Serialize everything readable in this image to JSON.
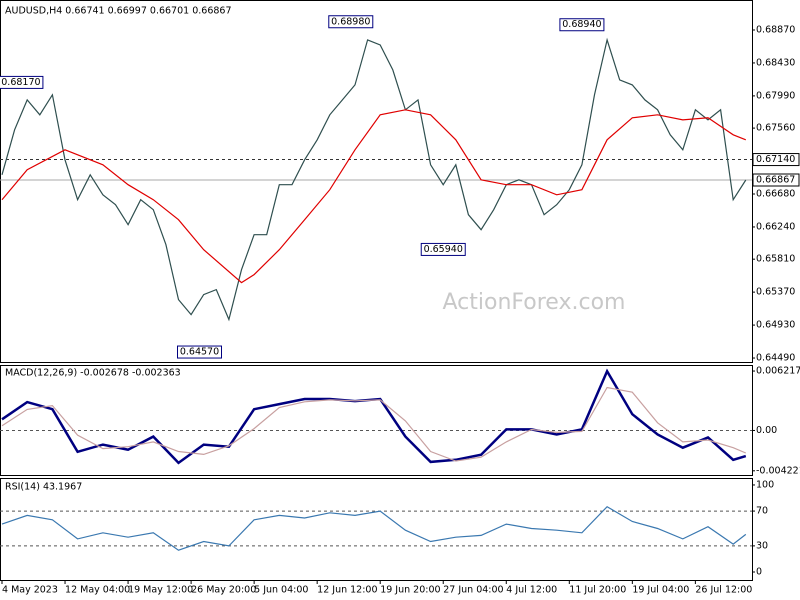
{
  "chart_data": [
    {
      "type": "line",
      "title": "AUDUSD,H4 0.66741 0.66997 0.66701 0.66867",
      "watermark": "ActionForex.com",
      "xlim": [
        0,
        356
      ],
      "ylim": [
        0.64437,
        0.69217
      ],
      "yticks": [
        {
          "value": 0.6887,
          "label": "0.68870"
        },
        {
          "value": 0.6843,
          "label": "0.68430"
        },
        {
          "value": 0.6799,
          "label": "0.67990"
        },
        {
          "value": 0.6756,
          "label": "0.67560"
        },
        {
          "value": 0.6668,
          "label": "0.66680"
        },
        {
          "value": 0.6624,
          "label": "0.66240"
        },
        {
          "value": 0.6581,
          "label": "0.65810"
        },
        {
          "value": 0.6537,
          "label": "0.65370"
        },
        {
          "value": 0.6493,
          "label": "0.64930"
        },
        {
          "value": 0.6449,
          "label": "0.64490"
        }
      ],
      "series": [
        {
          "name": "AUDUSD",
          "color": "#2f4f4f",
          "x": [
            0,
            6,
            12,
            18,
            24,
            30,
            36,
            42,
            48,
            54,
            60,
            66,
            72,
            78,
            84,
            90,
            96,
            102,
            108,
            114,
            120,
            126,
            132,
            138,
            144,
            150,
            156,
            162,
            168,
            174,
            180,
            186,
            192,
            198,
            204,
            210,
            216,
            222,
            228,
            234,
            240,
            246,
            252,
            258,
            264,
            270,
            276,
            282,
            288,
            294,
            300,
            306,
            312,
            318,
            324,
            330,
            336,
            342,
            348,
            354
          ],
          "values": [
            0.66937,
            0.67537,
            0.67937,
            0.67737,
            0.68004,
            0.67137,
            0.66604,
            0.66937,
            0.6667,
            0.66537,
            0.6627,
            0.66604,
            0.6647,
            0.66004,
            0.6527,
            0.6507,
            0.65337,
            0.65404,
            0.65004,
            0.6567,
            0.66137,
            0.66137,
            0.66804,
            0.66804,
            0.67137,
            0.67404,
            0.67737,
            0.67937,
            0.68137,
            0.68737,
            0.6867,
            0.68337,
            0.67804,
            0.67937,
            0.6707,
            0.66804,
            0.6707,
            0.66404,
            0.66204,
            0.6647,
            0.66804,
            0.6687,
            0.66804,
            0.66404,
            0.66537,
            0.66737,
            0.6707,
            0.68004,
            0.68737,
            0.68204,
            0.68137,
            0.67937,
            0.67804,
            0.6747,
            0.6727,
            0.67804,
            0.6767,
            0.67804,
            0.66604,
            0.66867
          ]
        },
        {
          "name": "MA",
          "color": "#e00000",
          "x": [
            0,
            12,
            30,
            48,
            60,
            72,
            84,
            96,
            114,
            120,
            132,
            144,
            156,
            168,
            180,
            192,
            204,
            216,
            228,
            240,
            252,
            264,
            276,
            288,
            300,
            312,
            324,
            336,
            348,
            354
          ],
          "values": [
            0.66604,
            0.67004,
            0.6727,
            0.6707,
            0.66804,
            0.66604,
            0.66337,
            0.65937,
            0.65497,
            0.65604,
            0.65937,
            0.66337,
            0.66737,
            0.6727,
            0.67737,
            0.67804,
            0.67737,
            0.67404,
            0.6687,
            0.66804,
            0.66804,
            0.6667,
            0.66737,
            0.67404,
            0.67697,
            0.67737,
            0.6767,
            0.67697,
            0.6747,
            0.67404
          ]
        }
      ],
      "hlines": [
        {
          "value": 0.6714,
          "label": "0.67140",
          "style": "dashed"
        },
        {
          "value": 0.66867,
          "label": "0.66867",
          "style": "solid"
        }
      ],
      "annotations": [
        {
          "label": "0.68170",
          "x": 9,
          "y": 0.6817
        },
        {
          "label": "0.68980",
          "x": 166,
          "y": 0.6898
        },
        {
          "label": "0.68940",
          "x": 276,
          "y": 0.6894
        },
        {
          "label": "0.65940",
          "x": 210,
          "y": 0.6594
        },
        {
          "label": "0.64570",
          "x": 94,
          "y": 0.6457
        }
      ]
    },
    {
      "type": "line",
      "title": "MACD(12,26,9) -0.002678 -0.002363",
      "xlim": [
        0,
        356
      ],
      "ylim": [
        -0.00466,
        0.00685
      ],
      "yticks": [
        0.006217,
        {
          "value": 0,
          "label": "0.00"
        },
        -0.004221
      ],
      "zero_line": true,
      "series": [
        {
          "name": "MACD",
          "color": "#000080",
          "x": [
            0,
            12,
            24,
            36,
            48,
            60,
            72,
            84,
            96,
            108,
            120,
            132,
            144,
            156,
            168,
            180,
            192,
            204,
            216,
            228,
            240,
            252,
            264,
            276,
            288,
            300,
            312,
            324,
            336,
            348,
            354
          ],
          "values": [
            0.00117,
            0.00297,
            0.00223,
            -0.00223,
            -0.00148,
            -0.00201,
            -0.00064,
            -0.00339,
            -0.00148,
            -0.0017,
            0.00223,
            0.00276,
            0.00329,
            0.00329,
            0.00307,
            0.00329,
            -0.00064,
            -0.00329,
            -0.00307,
            -0.00254,
            0.00011,
            0.00011,
            -0.00042,
            0.00011,
            0.0062,
            0.0017,
            -0.00042,
            -0.0018,
            -0.00074,
            -0.00307,
            -0.002678
          ]
        },
        {
          "name": "Signal",
          "color": "#c8a0a0",
          "x": [
            0,
            12,
            24,
            36,
            48,
            60,
            72,
            84,
            96,
            108,
            120,
            132,
            144,
            156,
            168,
            180,
            192,
            204,
            216,
            228,
            240,
            252,
            264,
            276,
            288,
            300,
            312,
            324,
            336,
            348,
            354
          ],
          "values": [
            0.0005,
            0.0022,
            0.0026,
            -0.0005,
            -0.0019,
            -0.0017,
            -0.0012,
            -0.0022,
            -0.0025,
            -0.0016,
            0.0002,
            0.0024,
            0.003,
            0.0032,
            0.0031,
            0.0032,
            0.001,
            -0.0022,
            -0.0032,
            -0.0028,
            -0.0012,
            0.0001,
            -0.0002,
            -0.0001,
            0.0045,
            0.004,
            0.0008,
            -0.0012,
            -0.001,
            -0.0018,
            -0.002363
          ]
        }
      ]
    },
    {
      "type": "line",
      "title": "RSI(14) 43.1967",
      "xlim": [
        0,
        356
      ],
      "ylim": [
        -9.2,
        108
      ],
      "yticks": [
        100,
        70,
        30,
        0
      ],
      "levels": [
        70,
        30
      ],
      "xticks": [
        {
          "value": 0,
          "label": "4 May 2023"
        },
        {
          "value": 30,
          "label": "12 May 04:00"
        },
        {
          "value": 60,
          "label": "19 May 12:00"
        },
        {
          "value": 90,
          "label": "26 May 20:00"
        },
        {
          "value": 120,
          "label": "5 Jun 04:00"
        },
        {
          "value": 150,
          "label": "12 Jun 12:00"
        },
        {
          "value": 180,
          "label": "19 Jun 20:00"
        },
        {
          "value": 210,
          "label": "27 Jun 04:00"
        },
        {
          "value": 240,
          "label": "4 Jul 12:00"
        },
        {
          "value": 270,
          "label": "11 Jul 20:00"
        },
        {
          "value": 300,
          "label": "19 Jul 04:00"
        },
        {
          "value": 330,
          "label": "26 Jul 12:00"
        }
      ],
      "series": [
        {
          "name": "RSI",
          "color": "#3a78b0",
          "x": [
            0,
            12,
            24,
            36,
            48,
            60,
            72,
            84,
            96,
            108,
            120,
            132,
            144,
            156,
            168,
            180,
            192,
            204,
            216,
            228,
            240,
            252,
            264,
            276,
            288,
            300,
            312,
            324,
            336,
            348,
            354
          ],
          "values": [
            55,
            65,
            60,
            38,
            45,
            40,
            45,
            25,
            35,
            30,
            60,
            65,
            62,
            68,
            65,
            70,
            48,
            35,
            40,
            42,
            55,
            50,
            48,
            45,
            75,
            58,
            50,
            38,
            52,
            32,
            43.1967
          ]
        }
      ]
    }
  ]
}
